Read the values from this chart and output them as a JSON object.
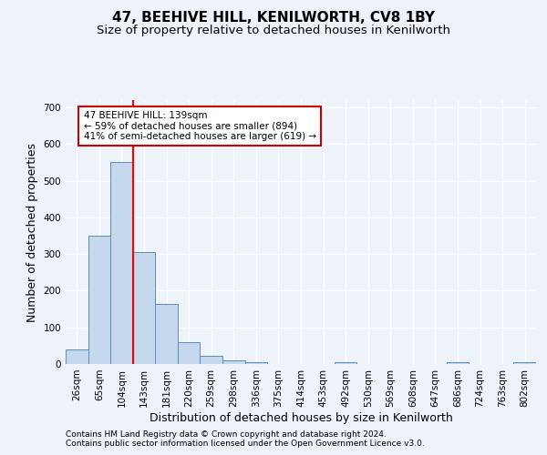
{
  "title": "47, BEEHIVE HILL, KENILWORTH, CV8 1BY",
  "subtitle": "Size of property relative to detached houses in Kenilworth",
  "xlabel": "Distribution of detached houses by size in Kenilworth",
  "ylabel": "Number of detached properties",
  "bar_values": [
    40,
    350,
    550,
    305,
    165,
    60,
    22,
    10,
    5,
    0,
    0,
    0,
    5,
    0,
    0,
    0,
    0,
    5,
    0,
    0,
    5
  ],
  "bar_labels": [
    "26sqm",
    "65sqm",
    "104sqm",
    "143sqm",
    "181sqm",
    "220sqm",
    "259sqm",
    "298sqm",
    "336sqm",
    "375sqm",
    "414sqm",
    "453sqm",
    "492sqm",
    "530sqm",
    "569sqm",
    "608sqm",
    "647sqm",
    "686sqm",
    "724sqm",
    "763sqm",
    "802sqm"
  ],
  "bar_color": "#c5d8ed",
  "bar_edge_color": "#5b8db8",
  "ylim": [
    0,
    720
  ],
  "yticks": [
    0,
    100,
    200,
    300,
    400,
    500,
    600,
    700
  ],
  "red_line_x": 2.5,
  "annotation_line1": "47 BEEHIVE HILL: 139sqm",
  "annotation_line2": "← 59% of detached houses are smaller (894)",
  "annotation_line3": "41% of semi-detached houses are larger (619) →",
  "annotation_box_color": "#ffffff",
  "annotation_box_edge_color": "#cc0000",
  "footer_line1": "Contains HM Land Registry data © Crown copyright and database right 2024.",
  "footer_line2": "Contains public sector information licensed under the Open Government Licence v3.0.",
  "background_color": "#eef2f9",
  "grid_color": "#ffffff",
  "title_fontsize": 11,
  "subtitle_fontsize": 9.5,
  "axis_label_fontsize": 9,
  "tick_fontsize": 7.5,
  "footer_fontsize": 6.5
}
